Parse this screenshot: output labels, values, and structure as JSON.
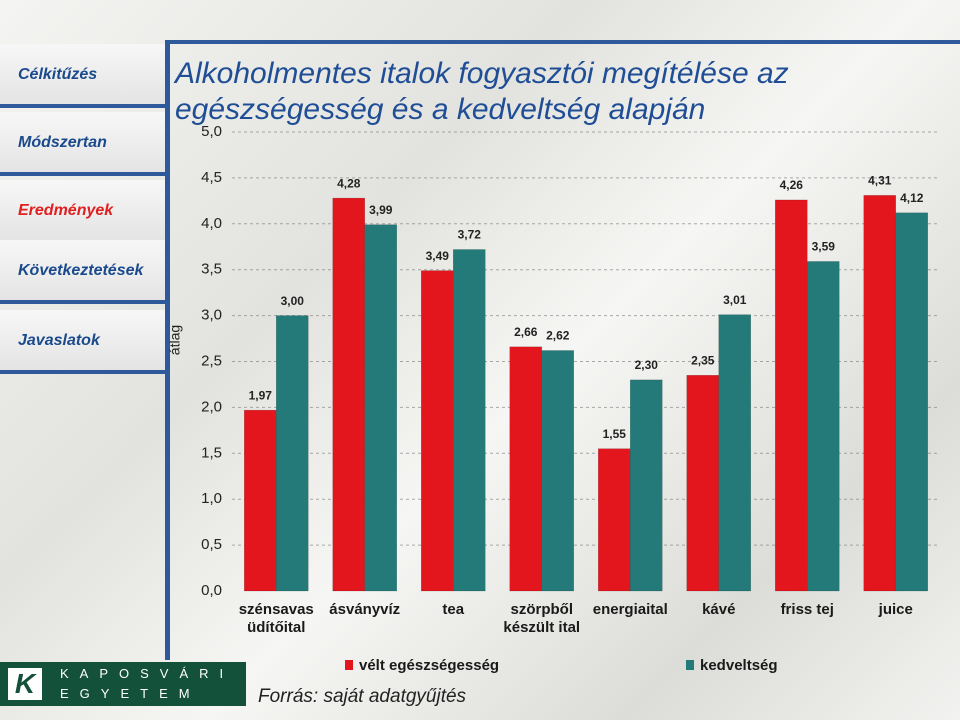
{
  "nav": [
    "Célkitűzés",
    "Módszertan",
    "Eredmények",
    "Következtetések",
    "Javaslatok"
  ],
  "logo": {
    "line1": "KAPOSVÁRI",
    "line2": "EGYETEM"
  },
  "source": "Forrás: saját adatgyűjtés",
  "chart_data": {
    "type": "bar",
    "title": "Alkoholmentes italok fogyasztói megítélése az egészségesség és a kedveltség alapján",
    "y_label": "átlag",
    "categories": [
      "szénsavas\nüdítőital",
      "ásványvíz",
      "tea",
      "szörpből\nkészült ital",
      "energiaital",
      "kávé",
      "friss tej",
      "juice"
    ],
    "series": [
      {
        "name": "vélt egészségesség",
        "color": "#e3161d",
        "values": [
          1.97,
          4.28,
          3.49,
          2.66,
          1.55,
          2.35,
          4.26,
          4.31
        ],
        "value_labels": [
          "1,97",
          "4,28",
          "3,49",
          "2,66",
          "1,55",
          "2,35",
          "4,26",
          "4,31"
        ]
      },
      {
        "name": "kedveltség",
        "color": "#237a78",
        "values": [
          3.0,
          3.99,
          3.72,
          2.62,
          2.3,
          3.01,
          3.59,
          4.12
        ],
        "value_labels": [
          "3,00",
          "3,99",
          "3,72",
          "2,62",
          "2,30",
          "3,01",
          "3,59",
          "4,12"
        ]
      }
    ],
    "ylim": [
      0,
      5
    ],
    "yticks": [
      {
        "value": 0,
        "label": "0,0"
      },
      {
        "value": 0.5,
        "label": "0,5"
      },
      {
        "value": 1,
        "label": "1,0"
      },
      {
        "value": 1.5,
        "label": "1,5"
      },
      {
        "value": 2,
        "label": "2,0"
      },
      {
        "value": 2.5,
        "label": "2,5"
      },
      {
        "value": 3,
        "label": "3,0"
      },
      {
        "value": 3.5,
        "label": "3,5"
      },
      {
        "value": 4,
        "label": "4,0"
      },
      {
        "value": 4.5,
        "label": "4,5"
      },
      {
        "value": 5,
        "label": "5,0"
      }
    ],
    "grid": true
  }
}
